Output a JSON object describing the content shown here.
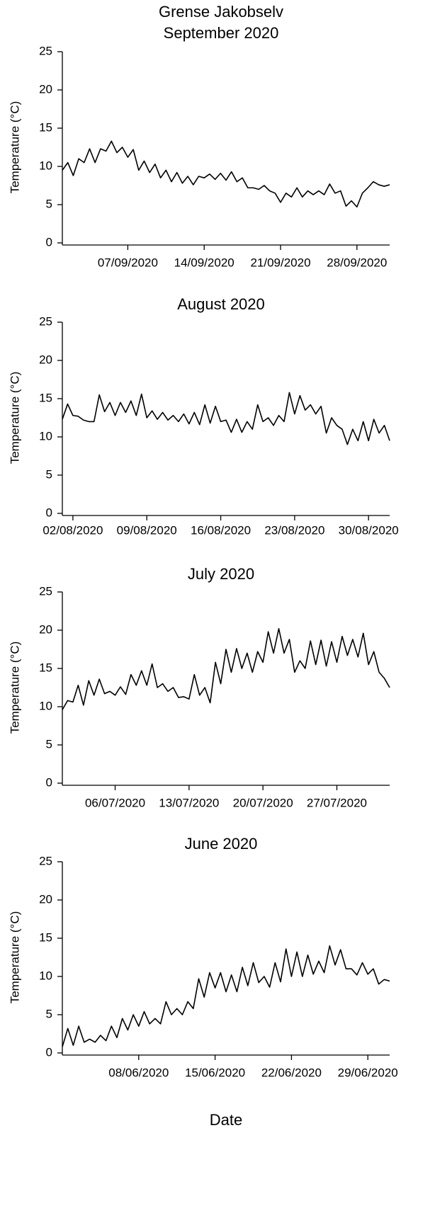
{
  "title": "Grense Jakobselv",
  "chart_data": [
    {
      "type": "line",
      "title": "September 2020",
      "ylabel": "Temperature (°C)",
      "xlim": [
        1,
        31
      ],
      "ylim": [
        0,
        25
      ],
      "yticks": [
        0,
        5,
        10,
        15,
        20,
        25
      ],
      "xticks": [
        {
          "value": 7,
          "label": "07/09/2020"
        },
        {
          "value": 14,
          "label": "14/09/2020"
        },
        {
          "value": 21,
          "label": "21/09/2020"
        },
        {
          "value": 28,
          "label": "28/09/2020"
        }
      ],
      "x": [
        1,
        1.5,
        2,
        2.5,
        3,
        3.5,
        4,
        4.5,
        5,
        5.5,
        6,
        6.5,
        7,
        7.5,
        8,
        8.5,
        9,
        9.5,
        10,
        10.5,
        11,
        11.5,
        12,
        12.5,
        13,
        13.5,
        14,
        14.5,
        15,
        15.5,
        16,
        16.5,
        17,
        17.5,
        18,
        18.5,
        19,
        19.5,
        20,
        20.5,
        21,
        21.5,
        22,
        22.5,
        23,
        23.5,
        24,
        24.5,
        25,
        25.5,
        26,
        26.5,
        27,
        27.5,
        28,
        28.5,
        29,
        29.5,
        30,
        30.5,
        31
      ],
      "series": [
        {
          "color": "#000000",
          "values": [
            9.5,
            10.5,
            8.8,
            11,
            10.5,
            12.3,
            10.5,
            12.3,
            12,
            13.3,
            11.8,
            12.5,
            11.2,
            12.2,
            9.5,
            10.7,
            9.2,
            10.3,
            8.5,
            9.5,
            8,
            9.2,
            7.8,
            8.7,
            7.6,
            8.7,
            8.5,
            9,
            8.3,
            9.1,
            8.2,
            9.3,
            8,
            8.5,
            7.2,
            7.2,
            7,
            7.5,
            6.8,
            6.5,
            5.3,
            6.5,
            6,
            7.2,
            6,
            6.8,
            6.3,
            6.8,
            6.3,
            7.7,
            6.5,
            6.8,
            4.8,
            5.5,
            4.7,
            6.5,
            7.2,
            8,
            7.6,
            7.4,
            7.6
          ]
        }
      ]
    },
    {
      "type": "line",
      "title": "August 2020",
      "ylabel": "Temperature (°C)",
      "xlim": [
        1,
        32
      ],
      "ylim": [
        0,
        25
      ],
      "yticks": [
        0,
        5,
        10,
        15,
        20,
        25
      ],
      "xticks": [
        {
          "value": 2,
          "label": "02/08/2020"
        },
        {
          "value": 9,
          "label": "09/08/2020"
        },
        {
          "value": 16,
          "label": "16/08/2020"
        },
        {
          "value": 23,
          "label": "23/08/2020"
        },
        {
          "value": 30,
          "label": "30/08/2020"
        }
      ],
      "x": [
        1,
        1.5,
        2,
        2.5,
        3,
        3.5,
        4,
        4.5,
        5,
        5.5,
        6,
        6.5,
        7,
        7.5,
        8,
        8.5,
        9,
        9.5,
        10,
        10.5,
        11,
        11.5,
        12,
        12.5,
        13,
        13.5,
        14,
        14.5,
        15,
        15.5,
        16,
        16.5,
        17,
        17.5,
        18,
        18.5,
        19,
        19.5,
        20,
        20.5,
        21,
        21.5,
        22,
        22.5,
        23,
        23.5,
        24,
        24.5,
        25,
        25.5,
        26,
        26.5,
        27,
        27.5,
        28,
        28.5,
        29,
        29.5,
        30,
        30.5,
        31,
        31.5,
        32
      ],
      "series": [
        {
          "color": "#000000",
          "values": [
            12.3,
            14.3,
            12.8,
            12.7,
            12.2,
            12,
            12,
            15.5,
            13.3,
            14.5,
            12.8,
            14.5,
            13.2,
            14.7,
            12.8,
            15.6,
            12.5,
            13.4,
            12.3,
            13.2,
            12.2,
            12.8,
            12,
            13,
            11.7,
            13.2,
            11.6,
            14.2,
            11.8,
            14,
            12,
            12.2,
            10.6,
            12.3,
            10.6,
            12,
            11,
            14.2,
            12,
            12.5,
            11.5,
            12.8,
            12,
            15.8,
            13,
            15.4,
            13.5,
            14.2,
            13,
            14,
            10.5,
            12.5,
            11.5,
            11,
            9,
            11,
            9.5,
            12,
            9.5,
            12.3,
            10.5,
            11.5,
            9.5
          ]
        }
      ]
    },
    {
      "type": "line",
      "title": "July 2020",
      "ylabel": "Temperature (°C)",
      "xlim": [
        1,
        32
      ],
      "ylim": [
        0,
        25
      ],
      "yticks": [
        0,
        5,
        10,
        15,
        20,
        25
      ],
      "xticks": [
        {
          "value": 6,
          "label": "06/07/2020"
        },
        {
          "value": 13,
          "label": "13/07/2020"
        },
        {
          "value": 20,
          "label": "20/07/2020"
        },
        {
          "value": 27,
          "label": "27/07/2020"
        }
      ],
      "x": [
        1,
        1.5,
        2,
        2.5,
        3,
        3.5,
        4,
        4.5,
        5,
        5.5,
        6,
        6.5,
        7,
        7.5,
        8,
        8.5,
        9,
        9.5,
        10,
        10.5,
        11,
        11.5,
        12,
        12.5,
        13,
        13.5,
        14,
        14.5,
        15,
        15.5,
        16,
        16.5,
        17,
        17.5,
        18,
        18.5,
        19,
        19.5,
        20,
        20.5,
        21,
        21.5,
        22,
        22.5,
        23,
        23.5,
        24,
        24.5,
        25,
        25.5,
        26,
        26.5,
        27,
        27.5,
        28,
        28.5,
        29,
        29.5,
        30,
        30.5,
        31,
        31.5,
        32
      ],
      "series": [
        {
          "color": "#000000",
          "values": [
            9.6,
            10.8,
            10.6,
            12.8,
            10.2,
            13.4,
            11.5,
            13.6,
            11.7,
            12,
            11.5,
            12.6,
            11.6,
            14.2,
            12.8,
            14.7,
            12.8,
            15.6,
            12.5,
            13,
            12,
            12.5,
            11.2,
            11.3,
            11,
            14.2,
            11.5,
            12.5,
            10.5,
            15.8,
            13,
            17.5,
            14.5,
            17.6,
            15,
            17,
            14.5,
            17.2,
            15.8,
            19.8,
            17,
            20.2,
            17,
            18.8,
            14.5,
            16,
            15,
            18.6,
            15.5,
            18.7,
            15.3,
            18.5,
            15.8,
            19.2,
            16.7,
            18.8,
            16.5,
            19.6,
            15.5,
            17.2,
            14.5,
            13.7,
            12.5
          ]
        }
      ]
    },
    {
      "type": "line",
      "title": "June 2020",
      "ylabel": "Temperature (°C)",
      "xlabel": "Date",
      "xlim": [
        1,
        31
      ],
      "ylim": [
        0,
        25
      ],
      "yticks": [
        0,
        5,
        10,
        15,
        20,
        25
      ],
      "xticks": [
        {
          "value": 8,
          "label": "08/06/2020"
        },
        {
          "value": 15,
          "label": "15/06/2020"
        },
        {
          "value": 22,
          "label": "22/06/2020"
        },
        {
          "value": 29,
          "label": "29/06/2020"
        }
      ],
      "x": [
        1,
        1.5,
        2,
        2.5,
        3,
        3.5,
        4,
        4.5,
        5,
        5.5,
        6,
        6.5,
        7,
        7.5,
        8,
        8.5,
        9,
        9.5,
        10,
        10.5,
        11,
        11.5,
        12,
        12.5,
        13,
        13.5,
        14,
        14.5,
        15,
        15.5,
        16,
        16.5,
        17,
        17.5,
        18,
        18.5,
        19,
        19.5,
        20,
        20.5,
        21,
        21.5,
        22,
        22.5,
        23,
        23.5,
        24,
        24.5,
        25,
        25.5,
        26,
        26.5,
        27,
        27.5,
        28,
        28.5,
        29,
        29.5,
        30,
        30.5,
        31
      ],
      "series": [
        {
          "color": "#000000",
          "values": [
            0.8,
            3.2,
            1,
            3.5,
            1.4,
            1.8,
            1.4,
            2.3,
            1.6,
            3.5,
            2,
            4.5,
            3,
            5,
            3.5,
            5.4,
            3.8,
            4.5,
            3.8,
            6.7,
            5,
            5.8,
            5,
            6.7,
            5.8,
            9.7,
            7.3,
            10.5,
            8.5,
            10.5,
            8,
            10.2,
            8,
            11.2,
            8.8,
            11.8,
            9.2,
            10,
            8.6,
            11.8,
            9.3,
            13.6,
            10,
            13.2,
            10,
            12.8,
            10.3,
            12,
            10.5,
            14,
            11.5,
            13.5,
            11,
            11,
            10.2,
            11.8,
            10.3,
            11,
            9,
            9.6,
            9.4
          ]
        }
      ]
    }
  ]
}
